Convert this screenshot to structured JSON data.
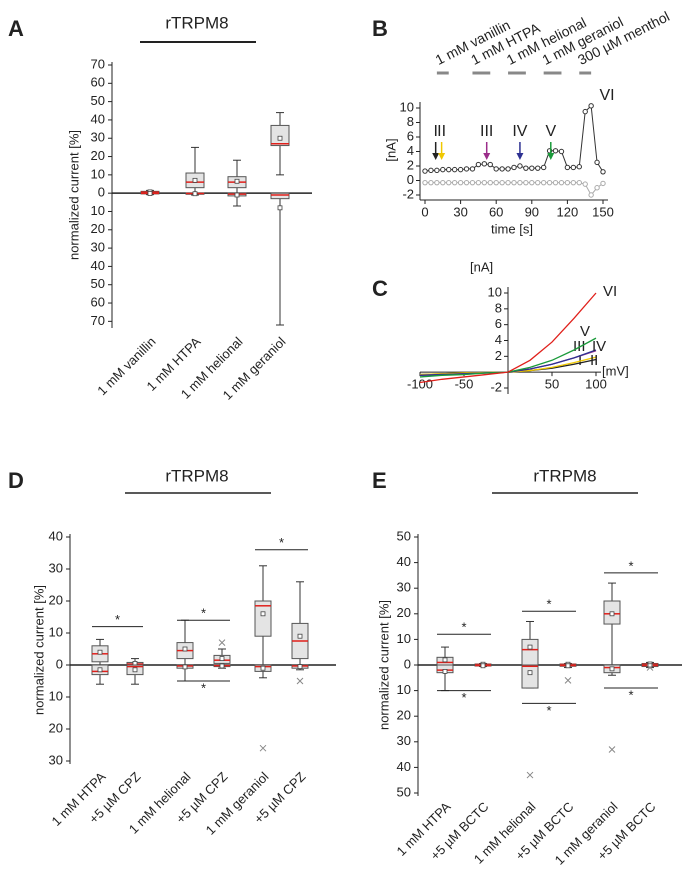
{
  "chart_data": [
    {
      "type": "box",
      "panel": "A",
      "title": "rTRPM8",
      "ylabel": "normalized current [%]",
      "categories": [
        "1 mM vanillin",
        "1 mM HTPA",
        "1 mM helional",
        "1 mM geraniol"
      ],
      "ylim": [
        -72,
        70
      ],
      "yticks": [
        70,
        60,
        50,
        40,
        30,
        20,
        10,
        0,
        {
          "value": -10,
          "label": "10"
        },
        {
          "value": -20,
          "label": "20"
        },
        {
          "value": -30,
          "label": "30"
        },
        {
          "value": -40,
          "label": "40"
        },
        {
          "value": -50,
          "label": "50"
        },
        {
          "value": -60,
          "label": "60"
        },
        {
          "value": -70,
          "label": "70"
        }
      ],
      "box_color": "#e4e4e4",
      "median_color": "#e0201b",
      "boxes": [
        {
          "up": {
            "min": 0,
            "q1": 0.2,
            "median": 0.6,
            "q3": 1,
            "max": 1.5,
            "mean": 0.7,
            "outliers": []
          },
          "down": {
            "min": -0.8,
            "q1": -0.4,
            "median": -0.1,
            "q3": 0,
            "max": 0,
            "mean": -0.2,
            "outliers": []
          }
        },
        {
          "up": {
            "min": 0,
            "q1": 3,
            "median": 6,
            "q3": 11,
            "max": 25,
            "mean": 7,
            "outliers": []
          },
          "down": {
            "min": -1,
            "q1": -0.6,
            "median": -0.2,
            "q3": 0,
            "max": 0,
            "mean": -0.3,
            "outliers": []
          }
        },
        {
          "up": {
            "min": 0,
            "q1": 3,
            "median": 6,
            "q3": 9,
            "max": 18,
            "mean": 6.5,
            "outliers": []
          },
          "down": {
            "min": -7,
            "q1": -1.5,
            "median": -0.5,
            "q3": 0,
            "max": 0,
            "mean": -1,
            "outliers": []
          }
        },
        {
          "up": {
            "min": 10,
            "q1": 26,
            "median": 27,
            "q3": 37,
            "max": 44,
            "mean": 30,
            "outliers": []
          },
          "down": {
            "min": -72,
            "q1": -3,
            "median": -1,
            "q3": 0,
            "max": 0,
            "mean": -8,
            "outliers": []
          }
        }
      ],
      "significance": []
    },
    {
      "type": "line",
      "panel": "B",
      "xlabel": "time [s]",
      "ylabel": "[nA]",
      "x": [
        0,
        5,
        10,
        15,
        20,
        25,
        30,
        35,
        40,
        45,
        50,
        55,
        60,
        65,
        70,
        75,
        80,
        85,
        90,
        95,
        100,
        105,
        110,
        115,
        120,
        125,
        130,
        135,
        140,
        145,
        150
      ],
      "xlim": [
        0,
        150
      ],
      "ylim": [
        -2,
        10
      ],
      "xticks": [
        0,
        30,
        60,
        90,
        120,
        150
      ],
      "yticks": [
        -2,
        0,
        2,
        4,
        6,
        8,
        10
      ],
      "series": [
        {
          "color": "#333333",
          "marker": "circle",
          "values": [
            1.3,
            1.4,
            1.4,
            1.5,
            1.5,
            1.5,
            1.5,
            1.6,
            1.6,
            2.2,
            2.3,
            2.2,
            1.6,
            1.6,
            1.6,
            1.8,
            2.0,
            1.7,
            1.7,
            1.7,
            1.8,
            4.1,
            4.1,
            4.0,
            1.8,
            1.8,
            1.9,
            9.5,
            10.3,
            2.5,
            1.2
          ]
        },
        {
          "color": "#aaaaaa",
          "marker": "circle",
          "values": [
            -0.3,
            -0.3,
            -0.3,
            -0.3,
            -0.3,
            -0.3,
            -0.3,
            -0.3,
            -0.3,
            -0.3,
            -0.3,
            -0.3,
            -0.3,
            -0.3,
            -0.3,
            -0.3,
            -0.3,
            -0.3,
            -0.3,
            -0.3,
            -0.3,
            -0.3,
            -0.3,
            -0.3,
            -0.3,
            -0.3,
            -0.3,
            -0.5,
            -2.0,
            -1.0,
            -0.4
          ]
        }
      ],
      "applications": [
        {
          "label": "1 mM vanillin",
          "start": 10,
          "end": 20
        },
        {
          "label": "1 mM HTPA",
          "start": 40,
          "end": 55
        },
        {
          "label": "1 mM helional",
          "start": 70,
          "end": 85
        },
        {
          "label": "1 mM geraniol",
          "start": 100,
          "end": 115
        },
        {
          "label": "300 µM menthol",
          "start": 130,
          "end": 140
        }
      ],
      "markers": [
        {
          "label": "I",
          "x": 9,
          "color": "#222222"
        },
        {
          "label": "II",
          "x": 14,
          "color": "#f0c800"
        },
        {
          "label": "III",
          "x": 52,
          "color": "#9b2d8a"
        },
        {
          "label": "IV",
          "x": 80,
          "color": "#2e3192"
        },
        {
          "label": "V",
          "x": 106,
          "color": "#1a9a3a"
        },
        {
          "label": "VI",
          "x": 142,
          "color": "#e0201b"
        }
      ]
    },
    {
      "type": "line",
      "panel": "C",
      "xlabel": "[mV]",
      "ylabel": "[nA]",
      "x": [
        -100,
        -75,
        -50,
        -25,
        0,
        25,
        50,
        75,
        100
      ],
      "xlim": [
        -100,
        100
      ],
      "ylim": [
        -2,
        10
      ],
      "xticks": [
        -100,
        -50,
        50,
        100
      ],
      "yticks": [
        -2,
        2,
        4,
        6,
        8,
        10
      ],
      "series": [
        {
          "name": "I",
          "color": "#222222",
          "values": [
            -0.3,
            -0.2,
            -0.1,
            -0.05,
            0,
            0.2,
            0.5,
            1.0,
            1.6
          ]
        },
        {
          "name": "II",
          "color": "#f0c800",
          "values": [
            -0.3,
            -0.2,
            -0.1,
            -0.05,
            0,
            0.2,
            0.6,
            1.2,
            1.9
          ]
        },
        {
          "name": "III",
          "color": "#9b2d8a",
          "values": [
            -0.4,
            -0.3,
            -0.2,
            -0.1,
            0,
            0.4,
            1.0,
            1.8,
            2.7
          ]
        },
        {
          "name": "IV",
          "color": "#2e3192",
          "values": [
            -0.4,
            -0.3,
            -0.2,
            -0.1,
            0,
            0.4,
            1.0,
            1.8,
            2.8
          ]
        },
        {
          "name": "V",
          "color": "#1a9a3a",
          "values": [
            -0.6,
            -0.4,
            -0.3,
            -0.1,
            0,
            0.6,
            1.5,
            2.8,
            4.3
          ]
        },
        {
          "name": "VI",
          "color": "#e0201b",
          "values": [
            -1.3,
            -0.9,
            -0.6,
            -0.3,
            0,
            1.5,
            3.8,
            6.8,
            10
          ]
        }
      ]
    },
    {
      "type": "box",
      "panel": "D",
      "title": "rTRPM8",
      "ylabel": "normalized current [%]",
      "categories": [
        "1 mM HTPA",
        "+5 µM CPZ",
        "1 mM helional",
        "+5 µM CPZ",
        "1 mM geraniol",
        "+5 µM CPZ"
      ],
      "ylim": [
        -30,
        40
      ],
      "yticks": [
        40,
        30,
        20,
        10,
        0,
        {
          "value": -10,
          "label": "10"
        },
        {
          "value": -20,
          "label": "20"
        },
        {
          "value": -30,
          "label": "30"
        }
      ],
      "box_color": "#e4e4e4",
      "median_color": "#e0201b",
      "boxes": [
        {
          "up": {
            "min": 0,
            "q1": 1,
            "median": 3.5,
            "q3": 6,
            "max": 8,
            "mean": 4,
            "outliers": []
          },
          "down": {
            "min": -6,
            "q1": -3,
            "median": -2,
            "q3": 0,
            "max": 0,
            "mean": -1.5,
            "outliers": []
          }
        },
        {
          "up": {
            "min": 0,
            "q1": 0,
            "median": 0.3,
            "q3": 0.8,
            "max": 2,
            "mean": 0.5,
            "outliers": []
          },
          "down": {
            "min": -6,
            "q1": -3,
            "median": -0.5,
            "q3": 0,
            "max": 0,
            "mean": -1.5,
            "outliers": []
          }
        },
        {
          "up": {
            "min": 0,
            "q1": 2,
            "median": 4.5,
            "q3": 7,
            "max": 14,
            "mean": 5,
            "outliers": []
          },
          "down": {
            "min": -5,
            "q1": -1,
            "median": -0.3,
            "q3": 0,
            "max": 0,
            "mean": -0.6,
            "outliers": []
          }
        },
        {
          "up": {
            "min": 0,
            "q1": 0.5,
            "median": 1.5,
            "q3": 3,
            "max": 5,
            "mean": 2,
            "outliers": [
              7
            ]
          },
          "down": {
            "min": -1,
            "q1": -0.5,
            "median": -0.2,
            "q3": 0,
            "max": 0,
            "mean": -0.3,
            "outliers": []
          }
        },
        {
          "up": {
            "min": 0,
            "q1": 9,
            "median": 18.5,
            "q3": 20,
            "max": 31,
            "mean": 16,
            "outliers": []
          },
          "down": {
            "min": -4,
            "q1": -2,
            "median": -0.5,
            "q3": 0,
            "max": 0,
            "mean": -1,
            "outliers": [
              -26
            ]
          }
        },
        {
          "up": {
            "min": 0,
            "q1": 2,
            "median": 7.5,
            "q3": 13,
            "max": 26,
            "mean": 9,
            "outliers": []
          },
          "down": {
            "min": -1.5,
            "q1": -1,
            "median": -0.3,
            "q3": 0,
            "max": 0,
            "mean": -0.5,
            "outliers": [
              -5
            ]
          }
        }
      ],
      "significance": [
        {
          "text": "*",
          "y": 12
        },
        {
          "text": "*",
          "y": 14
        },
        {
          "text": "*",
          "y": -5
        },
        {
          "text": "*",
          "y": 36
        }
      ]
    },
    {
      "type": "box",
      "panel": "E",
      "title": "rTRPM8",
      "ylabel": "normalized current [%]",
      "categories": [
        "1 mM HTPA",
        "+5 µM BCTC",
        "1 mM helional",
        "+5 µM BCTC",
        "1 mM geraniol",
        "+5 µM BCTC"
      ],
      "ylim": [
        -50,
        50
      ],
      "yticks": [
        50,
        40,
        30,
        20,
        10,
        0,
        {
          "value": -10,
          "label": "10"
        },
        {
          "value": -20,
          "label": "20"
        },
        {
          "value": -30,
          "label": "30"
        },
        {
          "value": -40,
          "label": "40"
        },
        {
          "value": -50,
          "label": "50"
        }
      ],
      "box_color": "#e4e4e4",
      "median_color": "#e0201b",
      "boxes": [
        {
          "up": {
            "min": 0,
            "q1": 0,
            "median": 1,
            "q3": 3,
            "max": 7,
            "mean": 2,
            "outliers": []
          },
          "down": {
            "min": -10,
            "q1": -3,
            "median": -2,
            "q3": 0,
            "max": 0,
            "mean": -2.5,
            "outliers": []
          }
        },
        {
          "up": {
            "min": 0,
            "q1": 0,
            "median": 0.2,
            "q3": 0.4,
            "max": 0.6,
            "mean": 0.3,
            "outliers": []
          },
          "down": {
            "min": -0.6,
            "q1": -0.4,
            "median": -0.2,
            "q3": 0,
            "max": 0,
            "mean": -0.3,
            "outliers": []
          }
        },
        {
          "up": {
            "min": 0,
            "q1": 0,
            "median": 6,
            "q3": 10,
            "max": 17,
            "mean": 7,
            "outliers": []
          },
          "down": {
            "min": -9,
            "q1": -9,
            "median": -0.5,
            "q3": 0,
            "max": 0,
            "mean": -3,
            "outliers": [
              -43
            ]
          }
        },
        {
          "up": {
            "min": 0,
            "q1": 0,
            "median": 0.2,
            "q3": 0.4,
            "max": 0.6,
            "mean": 0.3,
            "outliers": []
          },
          "down": {
            "min": -1,
            "q1": -0.5,
            "median": -0.2,
            "q3": 0,
            "max": 0,
            "mean": -0.3,
            "outliers": [
              -6
            ]
          }
        },
        {
          "up": {
            "min": 0,
            "q1": 16,
            "median": 20,
            "q3": 25,
            "max": 32,
            "mean": 20,
            "outliers": []
          },
          "down": {
            "min": -4,
            "q1": -3,
            "median": -1,
            "q3": 0,
            "max": 0,
            "mean": -1.5,
            "outliers": [
              -33
            ]
          }
        },
        {
          "up": {
            "min": 0,
            "q1": 0,
            "median": 0.3,
            "q3": 0.6,
            "max": 1,
            "mean": 0.4,
            "outliers": []
          },
          "down": {
            "min": -1,
            "q1": -0.6,
            "median": -0.2,
            "q3": 0,
            "max": 0,
            "mean": -0.3,
            "outliers": [
              -1
            ]
          }
        }
      ],
      "significance": [
        {
          "text": "*",
          "y": 12
        },
        {
          "text": "*",
          "y": -10
        },
        {
          "text": "*",
          "y": 21
        },
        {
          "text": "*",
          "y": -15
        },
        {
          "text": "*",
          "y": 36
        },
        {
          "text": "*",
          "y": -9
        }
      ]
    }
  ]
}
